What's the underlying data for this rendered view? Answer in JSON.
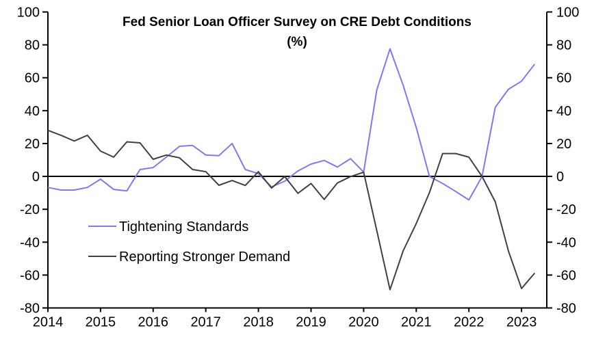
{
  "chart_data": {
    "type": "line",
    "title": "Fed Senior Loan Officer Survey on CRE Debt Conditions",
    "subtitle": "(%)",
    "xlabel": "",
    "ylabel": "",
    "xlim": [
      2014,
      2023.5
    ],
    "ylim": [
      -80,
      100
    ],
    "y_ticks": [
      "100",
      "80",
      "60",
      "40",
      "20",
      "0",
      "-20",
      "-40",
      "-60",
      "-80"
    ],
    "y_tick_values": [
      100,
      80,
      60,
      40,
      20,
      0,
      -20,
      -40,
      -60,
      -80
    ],
    "x_ticks": [
      "2014",
      "2015",
      "2016",
      "2017",
      "2018",
      "2019",
      "2020",
      "2021",
      "2022",
      "2023"
    ],
    "x_tick_values": [
      2014,
      2015,
      2016,
      2017,
      2018,
      2019,
      2020,
      2021,
      2022,
      2023
    ],
    "right_axis_mirrors_left": true,
    "grid": false,
    "zero_line": true,
    "legend_placement": "bottom-left",
    "x": [
      2014.0,
      2014.25,
      2014.5,
      2014.75,
      2015.0,
      2015.25,
      2015.5,
      2015.75,
      2016.0,
      2016.25,
      2016.5,
      2016.75,
      2017.0,
      2017.25,
      2017.5,
      2017.75,
      2018.0,
      2018.25,
      2018.5,
      2018.75,
      2019.0,
      2019.25,
      2019.5,
      2019.75,
      2020.0,
      2020.25,
      2020.5,
      2020.75,
      2021.0,
      2021.25,
      2021.5,
      2021.75,
      2022.0,
      2022.25,
      2022.5,
      2022.75,
      2023.0,
      2023.25
    ],
    "series": [
      {
        "name": "Tightening Standards",
        "color": "#7b7bf0",
        "values": [
          -6.7,
          -8.3,
          -8.3,
          -6.7,
          -1.7,
          -7.9,
          -8.8,
          4.2,
          5.4,
          11.7,
          18.3,
          18.8,
          13.0,
          12.6,
          20.0,
          4.2,
          1.7,
          -6.4,
          -2.9,
          3.3,
          7.5,
          9.7,
          5.7,
          10.8,
          2.6,
          52.6,
          77.6,
          55.4,
          29.7,
          0.0,
          -4.3,
          -9.2,
          -14.3,
          0.0,
          42.0,
          53.0,
          57.9,
          68.3
        ]
      },
      {
        "name": "Reporting Stronger Demand",
        "color": "#404040",
        "values": [
          28.0,
          25.0,
          21.5,
          25.0,
          15.4,
          11.7,
          21.0,
          20.4,
          10.4,
          13.0,
          11.3,
          4.2,
          2.9,
          -5.4,
          -2.5,
          -5.5,
          2.9,
          -7.1,
          -0.1,
          -10.3,
          -4.3,
          -14.0,
          -4.0,
          -0.1,
          2.5,
          -33.0,
          -68.9,
          -45.3,
          -28.6,
          -9.9,
          13.9,
          13.9,
          11.7,
          0.0,
          -15.4,
          -45.3,
          -68.2,
          -58.8
        ]
      }
    ]
  }
}
